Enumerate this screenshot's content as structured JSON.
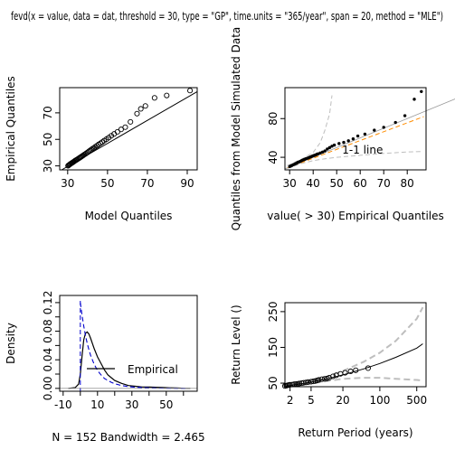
{
  "title": "fevd(x = value, data = dat, threshold = 30, type = \"GP\", time.units = \"365/year\", span = 20, method = \"MLE\")",
  "chart_data": [
    {
      "type": "scatter",
      "panel": "qq-model",
      "xlabel": "Model Quantiles",
      "ylabel": "Empirical Quantiles",
      "xlim": [
        26,
        95
      ],
      "ylim": [
        27,
        89
      ],
      "xticks": [
        30,
        50,
        70,
        90
      ],
      "yticks": [
        30,
        50,
        70
      ],
      "points": [
        [
          30.2,
          30.1
        ],
        [
          30.5,
          30.5
        ],
        [
          30.9,
          30.9
        ],
        [
          31.2,
          31.3
        ],
        [
          31.6,
          31.7
        ],
        [
          32.0,
          32.1
        ],
        [
          32.4,
          32.5
        ],
        [
          32.8,
          32.9
        ],
        [
          33.2,
          33.3
        ],
        [
          33.6,
          33.8
        ],
        [
          34.0,
          34.2
        ],
        [
          34.5,
          34.6
        ],
        [
          34.9,
          35.0
        ],
        [
          35.4,
          35.5
        ],
        [
          35.9,
          36.0
        ],
        [
          36.3,
          36.4
        ],
        [
          36.8,
          36.9
        ],
        [
          37.3,
          37.4
        ],
        [
          37.8,
          37.9
        ],
        [
          38.3,
          38.5
        ],
        [
          38.9,
          39.0
        ],
        [
          39.4,
          39.6
        ],
        [
          40.0,
          40.2
        ],
        [
          40.6,
          40.9
        ],
        [
          41.2,
          41.5
        ],
        [
          41.8,
          42.2
        ],
        [
          42.5,
          43.0
        ],
        [
          43.2,
          43.6
        ],
        [
          43.9,
          44.4
        ],
        [
          44.7,
          45.2
        ],
        [
          45.5,
          46.1
        ],
        [
          46.4,
          47.0
        ],
        [
          47.3,
          47.9
        ],
        [
          48.3,
          49.0
        ],
        [
          49.4,
          50.1
        ],
        [
          50.6,
          51.3
        ],
        [
          51.9,
          52.7
        ],
        [
          53.3,
          54.1
        ],
        [
          55.0,
          55.7
        ],
        [
          56.8,
          57.5
        ],
        [
          58.9,
          59.2
        ],
        [
          61.5,
          63.2
        ],
        [
          64.8,
          69.4
        ],
        [
          66.7,
          73.0
        ],
        [
          69.0,
          75.2
        ],
        [
          73.6,
          81.3
        ],
        [
          79.7,
          83.1
        ],
        [
          91.4,
          86.8
        ]
      ],
      "reference_line": [
        [
          27,
          27
        ],
        [
          95,
          86
        ]
      ]
    },
    {
      "type": "scatter",
      "panel": "qq-simulated",
      "xlabel": "value( > 30) Empirical Quantiles",
      "ylabel": "Quantiles from Model Simulated Data",
      "xlim": [
        28,
        88
      ],
      "ylim": [
        27,
        112
      ],
      "xticks": [
        30,
        40,
        50,
        60,
        70,
        80
      ],
      "yticks": [
        40,
        80
      ],
      "annotation": "1-1 line",
      "points": [
        [
          30.0,
          30.4
        ],
        [
          30.5,
          31.0
        ],
        [
          31.0,
          31.6
        ],
        [
          31.5,
          32.3
        ],
        [
          32.0,
          32.8
        ],
        [
          32.5,
          33.4
        ],
        [
          33.0,
          34.0
        ],
        [
          33.5,
          34.8
        ],
        [
          34.0,
          35.2
        ],
        [
          34.5,
          35.8
        ],
        [
          35.0,
          36.4
        ],
        [
          35.5,
          37.0
        ],
        [
          36.0,
          37.5
        ],
        [
          36.5,
          38.0
        ],
        [
          37.0,
          38.6
        ],
        [
          37.5,
          39.0
        ],
        [
          38.0,
          39.4
        ],
        [
          38.5,
          40.0
        ],
        [
          39.0,
          40.5
        ],
        [
          39.5,
          41.0
        ],
        [
          40.0,
          41.5
        ],
        [
          40.5,
          42.0
        ],
        [
          41.0,
          42.4
        ],
        [
          41.5,
          43.0
        ],
        [
          42.0,
          43.5
        ],
        [
          43.0,
          44.4
        ],
        [
          44.0,
          45.4
        ],
        [
          45.0,
          46.6
        ],
        [
          46.0,
          48.5
        ],
        [
          47.0,
          50.0
        ],
        [
          48.0,
          51.5
        ],
        [
          49.0,
          52.6
        ],
        [
          51.0,
          54.2
        ],
        [
          53.0,
          55.4
        ],
        [
          55.0,
          57.0
        ],
        [
          57.0,
          59.0
        ],
        [
          59.0,
          62.0
        ],
        [
          62.0,
          64.0
        ],
        [
          66.0,
          68.0
        ],
        [
          70.0,
          71.0
        ],
        [
          75.0,
          76.0
        ],
        [
          79.0,
          83.0
        ],
        [
          83.0,
          100.0
        ],
        [
          86.0,
          108.0
        ]
      ],
      "lower_band": [
        [
          29.0,
          28.5
        ],
        [
          35,
          33.5
        ],
        [
          40,
          36.5
        ],
        [
          45,
          38.5
        ],
        [
          50,
          40
        ],
        [
          60,
          42
        ],
        [
          70,
          44
        ],
        [
          80,
          45.5
        ],
        [
          86,
          46
        ]
      ],
      "upper_band": [
        [
          29.0,
          31.5
        ],
        [
          35,
          38
        ],
        [
          40,
          45
        ],
        [
          43,
          55
        ],
        [
          45,
          68
        ],
        [
          47,
          85
        ],
        [
          48,
          104
        ]
      ],
      "regression_line": [
        [
          29,
          29
        ],
        [
          87,
          82
        ]
      ]
    },
    {
      "type": "line",
      "panel": "density",
      "xlabel": "N = 152   Bandwidth = 2.465",
      "ylabel": "Density",
      "xlim": [
        -12,
        68
      ],
      "ylim": [
        -0.004,
        0.13
      ],
      "xticks": [
        -10,
        10,
        30,
        50
      ],
      "xticks_minor": [
        0,
        20,
        40,
        60
      ],
      "yticks": [
        0.0,
        0.04,
        0.08,
        0.12
      ],
      "yticks_minor": [
        0.02,
        0.06,
        0.1
      ],
      "legend": "Empirical",
      "empirical": [
        [
          -7,
          0
        ],
        [
          -3,
          0.001
        ],
        [
          -1,
          0.006
        ],
        [
          0,
          0.02
        ],
        [
          1,
          0.045
        ],
        [
          2,
          0.068
        ],
        [
          3,
          0.077
        ],
        [
          4,
          0.079
        ],
        [
          5,
          0.076
        ],
        [
          6,
          0.07
        ],
        [
          8,
          0.056
        ],
        [
          10,
          0.044
        ],
        [
          12,
          0.035
        ],
        [
          14,
          0.026
        ],
        [
          16,
          0.019
        ],
        [
          18,
          0.015
        ],
        [
          20,
          0.011
        ],
        [
          24,
          0.007
        ],
        [
          28,
          0.004
        ],
        [
          32,
          0.003
        ],
        [
          36,
          0.002
        ],
        [
          40,
          0.0018
        ],
        [
          44,
          0.0015
        ],
        [
          48,
          0.0012
        ],
        [
          52,
          0.0008
        ],
        [
          56,
          0.0005
        ],
        [
          60,
          0.0002
        ],
        [
          64,
          0
        ]
      ],
      "modeled": [
        [
          0,
          0.12
        ],
        [
          1,
          0.102
        ],
        [
          2,
          0.087
        ],
        [
          3,
          0.074
        ],
        [
          4,
          0.063
        ],
        [
          5,
          0.054
        ],
        [
          6,
          0.046
        ],
        [
          8,
          0.034
        ],
        [
          10,
          0.025
        ],
        [
          12,
          0.019
        ],
        [
          14,
          0.014
        ],
        [
          16,
          0.011
        ],
        [
          18,
          0.0085
        ],
        [
          20,
          0.0065
        ],
        [
          24,
          0.004
        ],
        [
          28,
          0.0025
        ],
        [
          32,
          0.0016
        ],
        [
          36,
          0.001
        ],
        [
          40,
          0.0007
        ],
        [
          48,
          0.0003
        ],
        [
          56,
          0.0001
        ],
        [
          62,
          0
        ]
      ],
      "threshold_line": 0
    },
    {
      "type": "line",
      "panel": "return-level",
      "xlabel": "Return Period (years)",
      "ylabel": "Return Level ()",
      "xscale": "log",
      "xlim": [
        1.6,
        750
      ],
      "ylim": [
        40,
        275
      ],
      "xticks": [
        2,
        5,
        20,
        100,
        500
      ],
      "yticks": [
        50,
        150,
        250
      ],
      "points": [
        [
          1.6,
          42
        ],
        [
          1.7,
          43
        ],
        [
          1.8,
          44
        ],
        [
          1.9,
          45
        ],
        [
          2.0,
          45.5
        ],
        [
          2.2,
          46
        ],
        [
          2.4,
          47
        ],
        [
          2.6,
          47.5
        ],
        [
          2.8,
          48
        ],
        [
          3.0,
          49
        ],
        [
          3.3,
          50
        ],
        [
          3.6,
          51
        ],
        [
          4.0,
          52
        ],
        [
          4.4,
          53
        ],
        [
          5.0,
          54
        ],
        [
          5.5,
          55
        ],
        [
          6.0,
          56
        ],
        [
          6.5,
          57.5
        ],
        [
          7.0,
          59
        ],
        [
          8.0,
          61
        ],
        [
          9.0,
          62
        ],
        [
          10,
          63
        ],
        [
          11,
          65
        ],
        [
          13,
          69
        ],
        [
          15,
          72
        ],
        [
          18,
          76
        ],
        [
          22,
          79
        ],
        [
          28,
          83
        ],
        [
          35,
          86
        ],
        [
          60,
          92
        ]
      ],
      "fit": [
        [
          1.6,
          41
        ],
        [
          2,
          43
        ],
        [
          5,
          53
        ],
        [
          10,
          62
        ],
        [
          20,
          73
        ],
        [
          50,
          90
        ],
        [
          100,
          105
        ],
        [
          200,
          122
        ],
        [
          500,
          148
        ],
        [
          650,
          160
        ]
      ],
      "ci_upper": [
        [
          1.6,
          42
        ],
        [
          2,
          45
        ],
        [
          5,
          57
        ],
        [
          10,
          68
        ],
        [
          20,
          84
        ],
        [
          50,
          110
        ],
        [
          100,
          135
        ],
        [
          200,
          168
        ],
        [
          500,
          230
        ],
        [
          650,
          262
        ]
      ],
      "ci_lower": [
        [
          1.6,
          40
        ],
        [
          2,
          41.5
        ],
        [
          5,
          49
        ],
        [
          10,
          56
        ],
        [
          20,
          62
        ],
        [
          50,
          65
        ],
        [
          100,
          65
        ],
        [
          200,
          62
        ],
        [
          500,
          59
        ],
        [
          650,
          57
        ]
      ]
    }
  ],
  "colors": {
    "line": "#000000",
    "band": "#bebebe",
    "regression": "#ff8c00",
    "modeled": "#0000cd"
  }
}
